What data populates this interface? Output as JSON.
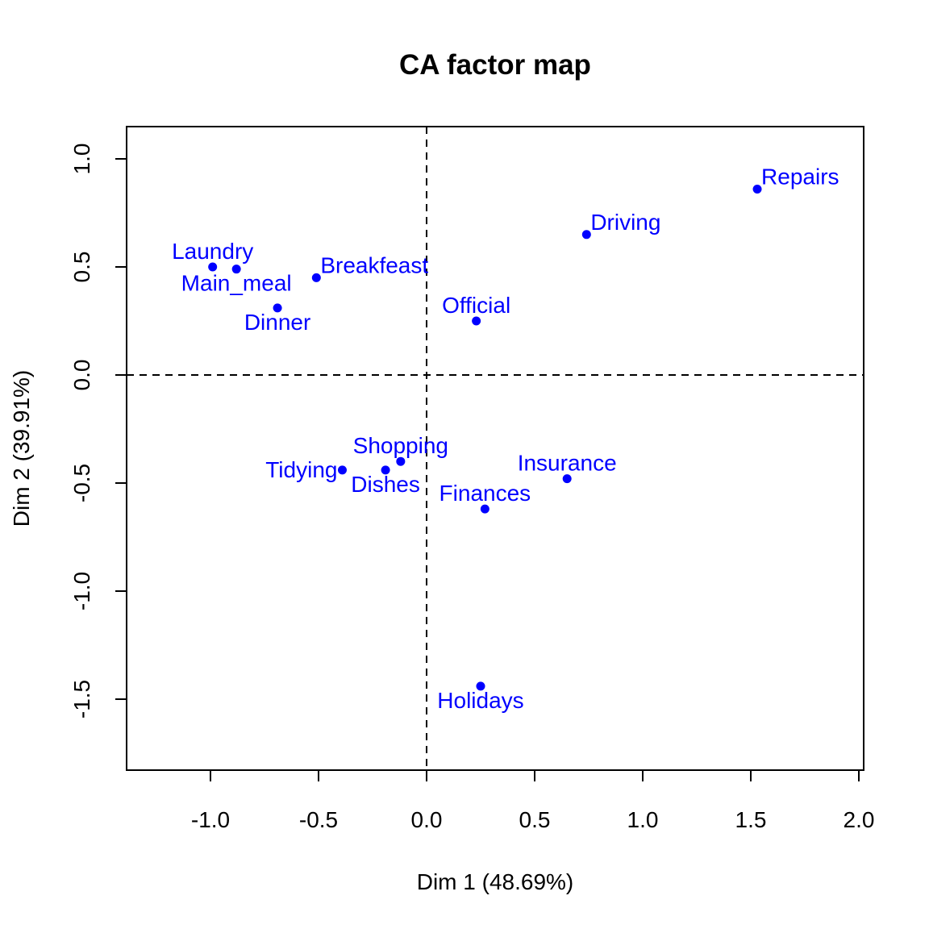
{
  "chart_data": {
    "type": "scatter",
    "title": "CA factor map",
    "xlabel": "Dim 1 (48.69%)",
    "ylabel": "Dim 2 (39.91%)",
    "xlim": [
      -1.4,
      2.0
    ],
    "ylim": [
      -1.83,
      1.15
    ],
    "x_ticks": [
      -1.0,
      -0.5,
      0.0,
      0.5,
      1.0,
      1.5,
      2.0
    ],
    "x_tick_labels": [
      "-1.0",
      "-0.5",
      "0.0",
      "0.5",
      "1.0",
      "1.5",
      "2.0"
    ],
    "y_ticks": [
      1.0,
      0.5,
      0.0,
      -0.5,
      -1.0,
      -1.5
    ],
    "y_tick_labels": [
      "1.0",
      "0.5",
      "0.0",
      "-0.5",
      "-1.0",
      "-1.5"
    ],
    "grid": false,
    "reference_lines": {
      "x": 0,
      "y": 0,
      "style": "dashed"
    },
    "point_color": "#0000ff",
    "points": [
      {
        "label": "Laundry",
        "x": -0.99,
        "y": 0.5,
        "label_pos": "above"
      },
      {
        "label": "Main_meal",
        "x": -0.88,
        "y": 0.49,
        "label_pos": "below"
      },
      {
        "label": "Dinner",
        "x": -0.69,
        "y": 0.31,
        "label_pos": "below"
      },
      {
        "label": "Breakfeast",
        "x": -0.51,
        "y": 0.45,
        "label_pos": "above-right"
      },
      {
        "label": "Tidying",
        "x": -0.39,
        "y": -0.44,
        "label_pos": "left"
      },
      {
        "label": "Dishes",
        "x": -0.19,
        "y": -0.44,
        "label_pos": "below"
      },
      {
        "label": "Shopping",
        "x": -0.12,
        "y": -0.4,
        "label_pos": "above"
      },
      {
        "label": "Official",
        "x": 0.23,
        "y": 0.25,
        "label_pos": "above"
      },
      {
        "label": "Driving",
        "x": 0.74,
        "y": 0.65,
        "label_pos": "above-right"
      },
      {
        "label": "Finances",
        "x": 0.27,
        "y": -0.62,
        "label_pos": "above"
      },
      {
        "label": "Insurance",
        "x": 0.65,
        "y": -0.48,
        "label_pos": "above"
      },
      {
        "label": "Repairs",
        "x": 1.53,
        "y": 0.86,
        "label_pos": "above-right"
      },
      {
        "label": "Holidays",
        "x": 0.25,
        "y": -1.44,
        "label_pos": "below"
      }
    ]
  }
}
